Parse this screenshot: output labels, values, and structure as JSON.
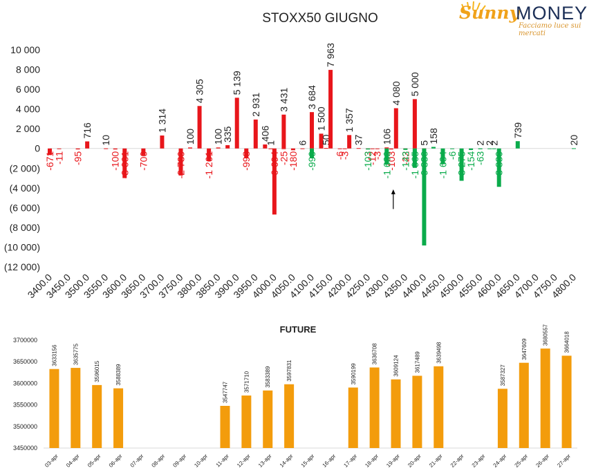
{
  "logo": {
    "brand_left": "Sunny",
    "brand_right": "MONEY",
    "tagline": "Facciamo luce sui mercati"
  },
  "colors": {
    "positive": "#e8161b",
    "negative": "#0aab4b",
    "future_bar": "#f39c0c",
    "text": "#222222"
  },
  "chart_data": [
    {
      "type": "bar",
      "title": "STOXX50 GIUGNO",
      "xlabel": "",
      "ylabel": "",
      "ylim": [
        -12000,
        10000
      ],
      "yticks": [
        10000,
        8000,
        6000,
        4000,
        2000,
        0,
        -2000,
        -4000,
        -6000,
        -8000,
        -10000,
        -12000
      ],
      "ytick_labels": [
        "10 000",
        "8 000",
        "6 000",
        "4 000",
        "2 000",
        "0",
        "(2 000)",
        "(4 000)",
        "(6 000)",
        "(8 000)",
        "(10 000)",
        "(12 000)"
      ],
      "categories": [
        "3400.0",
        "3450.0",
        "3500.0",
        "3550.0",
        "3600.0",
        "3650.0",
        "3700.0",
        "3750.0",
        "3800.0",
        "3850.0",
        "3900.0",
        "3950.0",
        "4000.0",
        "4050.0",
        "4100.0",
        "4150.0",
        "4200.0",
        "4250.0",
        "4300.0",
        "4350.0",
        "4400.0",
        "4450.0",
        "4500.0",
        "4550.0",
        "4600.0",
        "4650.0",
        "4700.0",
        "4750.0",
        "4800.0"
      ],
      "series": [
        {
          "color": "red",
          "bars": [
            {
              "x": 3400,
              "value": -671,
              "label": "-671"
            },
            {
              "x": 3425,
              "value": -11,
              "label": "-11"
            },
            {
              "x": 3475,
              "value": -95,
              "label": "-95"
            },
            {
              "x": 3500,
              "value": 716,
              "label": "716"
            },
            {
              "x": 3550,
              "value": 10,
              "label": "10"
            },
            {
              "x": 3575,
              "value": -100,
              "label": "-100"
            },
            {
              "x": 3600,
              "value": -3001,
              "label": "-3 001"
            },
            {
              "x": 3650,
              "value": -700,
              "label": "-700"
            },
            {
              "x": 3700,
              "value": 1314,
              "label": "1 314"
            },
            {
              "x": 3750,
              "value": -2739,
              "label": "-2 739"
            },
            {
              "x": 3775,
              "value": 100,
              "label": "100"
            },
            {
              "x": 3800,
              "value": 4305,
              "label": "4 305"
            },
            {
              "x": 3825,
              "value": -1261,
              "label": "-1 261"
            },
            {
              "x": 3850,
              "value": 100,
              "label": "100"
            },
            {
              "x": 3875,
              "value": 335,
              "label": "335"
            },
            {
              "x": 3900,
              "value": 5139,
              "label": "5 139"
            },
            {
              "x": 3925,
              "value": -998,
              "label": "-998"
            },
            {
              "x": 3950,
              "value": 2931,
              "label": "2 931"
            },
            {
              "x": 3975,
              "value": 406,
              "label": "406"
            },
            {
              "x": 3990,
              "value": 1,
              "label": "1"
            },
            {
              "x": 4000,
              "value": -6694,
              "label": "-6 694"
            },
            {
              "x": 4025,
              "value": 3431,
              "label": "3 431"
            },
            {
              "x": 4025,
              "value": -25,
              "label": "-25"
            },
            {
              "x": 4050,
              "value": -180,
              "label": "-180"
            },
            {
              "x": 4075,
              "value": 6,
              "label": "6"
            },
            {
              "x": 4100,
              "value": 3684,
              "label": "3 684"
            },
            {
              "x": 4125,
              "value": 1500,
              "label": "1 500"
            },
            {
              "x": 4138,
              "value": 50,
              "label": "50"
            },
            {
              "x": 4150,
              "value": 7963,
              "label": "7 963"
            },
            {
              "x": 4175,
              "value": -6,
              "label": "-6"
            },
            {
              "x": 4188,
              "value": -3,
              "label": "-3"
            },
            {
              "x": 4200,
              "value": 1357,
              "label": "1 357"
            },
            {
              "x": 4225,
              "value": 37,
              "label": "37"
            },
            {
              "x": 4250,
              "value": -3,
              "label": "-3"
            },
            {
              "x": 4262,
              "value": -12,
              "label": "-12"
            },
            {
              "x": 4275,
              "value": -3,
              "label": "-3"
            },
            {
              "x": 4300,
              "value": 106,
              "label": "106"
            },
            {
              "x": 4312,
              "value": -103,
              "label": "-103"
            },
            {
              "x": 4325,
              "value": 4080,
              "label": "4 080"
            },
            {
              "x": 4350,
              "value": -22,
              "label": "-22"
            },
            {
              "x": 4375,
              "value": 5000,
              "label": "5 000"
            },
            {
              "x": 4400,
              "value": 5,
              "label": "5"
            }
          ]
        },
        {
          "color": "green",
          "bars": [
            {
              "x": 4100,
              "value": -999,
              "label": "-999"
            },
            {
              "x": 4250,
              "value": -103,
              "label": "-103"
            },
            {
              "x": 4300,
              "value": -1639,
              "label": "-1 639"
            },
            {
              "x": 4350,
              "value": -143,
              "label": "-143"
            },
            {
              "x": 4375,
              "value": -1965,
              "label": "-1 965"
            },
            {
              "x": 4400,
              "value": -9830,
              "label": "-9 830"
            },
            {
              "x": 4425,
              "value": 158,
              "label": "158"
            },
            {
              "x": 4450,
              "value": -1604,
              "label": "-1 604"
            },
            {
              "x": 4475,
              "value": -6,
              "label": "-6"
            },
            {
              "x": 4500,
              "value": -3275,
              "label": "-3 275"
            },
            {
              "x": 4525,
              "value": -154,
              "label": "-154"
            },
            {
              "x": 4550,
              "value": -63,
              "label": "-63"
            },
            {
              "x": 4550,
              "value": 2,
              "label": "2"
            },
            {
              "x": 4575,
              "value": 2,
              "label": "2"
            },
            {
              "x": 4587,
              "value": 2,
              "label": "2"
            },
            {
              "x": 4600,
              "value": -3889,
              "label": "-3 889"
            },
            {
              "x": 4650,
              "value": 739,
              "label": "739"
            },
            {
              "x": 4800,
              "value": 20,
              "label": "20"
            }
          ]
        }
      ],
      "annotations": [
        {
          "type": "arrow",
          "x": 4325,
          "from": -6000,
          "to": -4000
        }
      ],
      "grid": false,
      "legend": "none"
    },
    {
      "type": "bar",
      "title": "FUTURE",
      "ylim": [
        3450000,
        3700000
      ],
      "yticks": [
        3700000,
        3650000,
        3600000,
        3550000,
        3500000,
        3450000
      ],
      "ytick_labels": [
        "3700000",
        "3650000",
        "3600000",
        "3550000",
        "3500000",
        "3450000"
      ],
      "categories": [
        "03-apr",
        "04-apr",
        "05-apr",
        "06-apr",
        "07-apr",
        "08-apr",
        "09-apr",
        "10-apr",
        "11-apr",
        "12-apr",
        "13-apr",
        "14-apr",
        "15-apr",
        "16-apr",
        "17-apr",
        "18-apr",
        "19-apr",
        "20-apr",
        "21-apr",
        "22-apr",
        "23-apr",
        "24-apr",
        "25-apr",
        "26-apr",
        "27-apr"
      ],
      "values": [
        3633156,
        3635775,
        3596015,
        3588389,
        null,
        null,
        null,
        null,
        3547747,
        3571710,
        3583389,
        3597831,
        null,
        null,
        3590199,
        3636708,
        3609124,
        3617489,
        3639498,
        null,
        null,
        3587327,
        3647609,
        3680557,
        3664018
      ],
      "value_labels": [
        "3633156",
        "3635775",
        "3596015",
        "3588389",
        "",
        "",
        "",
        "",
        "3547747",
        "3571710",
        "3583389",
        "3597831",
        "",
        "",
        "3590199",
        "3636708",
        "3609124",
        "3617489",
        "3639498",
        "",
        "",
        "3587327",
        "3647609",
        "3680557",
        "3664018"
      ],
      "grid": false,
      "legend": "none"
    }
  ]
}
